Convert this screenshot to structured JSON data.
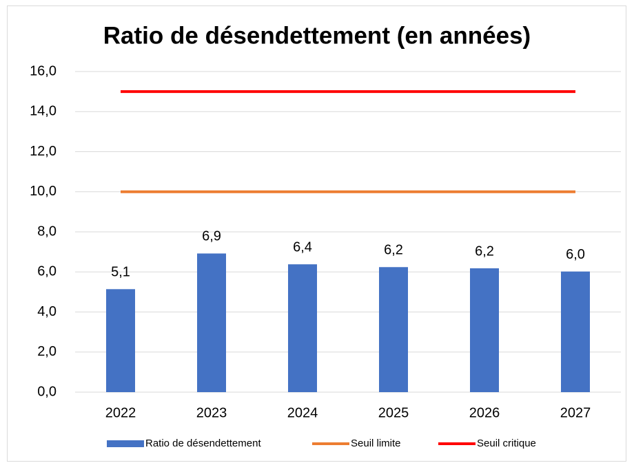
{
  "chart_data": {
    "type": "bar",
    "title": "Ratio de désendettement (en années)",
    "categories": [
      "2022",
      "2023",
      "2024",
      "2025",
      "2026",
      "2027"
    ],
    "series": [
      {
        "name": "Ratio de désendettement",
        "type": "bar",
        "color": "#4472c4",
        "values": [
          5.14,
          6.92,
          6.38,
          6.24,
          6.18,
          6.02
        ],
        "value_labels": [
          "5,1",
          "6,9",
          "6,4",
          "6,2",
          "6,2",
          "6,0"
        ]
      },
      {
        "name": "Seuil limite",
        "type": "line",
        "color": "#ed7d31",
        "values": [
          10,
          10,
          10,
          10,
          10,
          10
        ]
      },
      {
        "name": "Seuil critique",
        "type": "line",
        "color": "#ff0000",
        "values": [
          15,
          15,
          15,
          15,
          15,
          15
        ]
      }
    ],
    "ylim": [
      0,
      16
    ],
    "yticks": [
      {
        "value": 0,
        "label": "0,0"
      },
      {
        "value": 2,
        "label": "2,0"
      },
      {
        "value": 4,
        "label": "4,0"
      },
      {
        "value": 6,
        "label": "6,0"
      },
      {
        "value": 8,
        "label": "8,0"
      },
      {
        "value": 10,
        "label": "10,0"
      },
      {
        "value": 12,
        "label": "12,0"
      },
      {
        "value": 14,
        "label": "14,0"
      },
      {
        "value": 16,
        "label": "16,0"
      }
    ],
    "grid": true,
    "legend": "bottom"
  }
}
